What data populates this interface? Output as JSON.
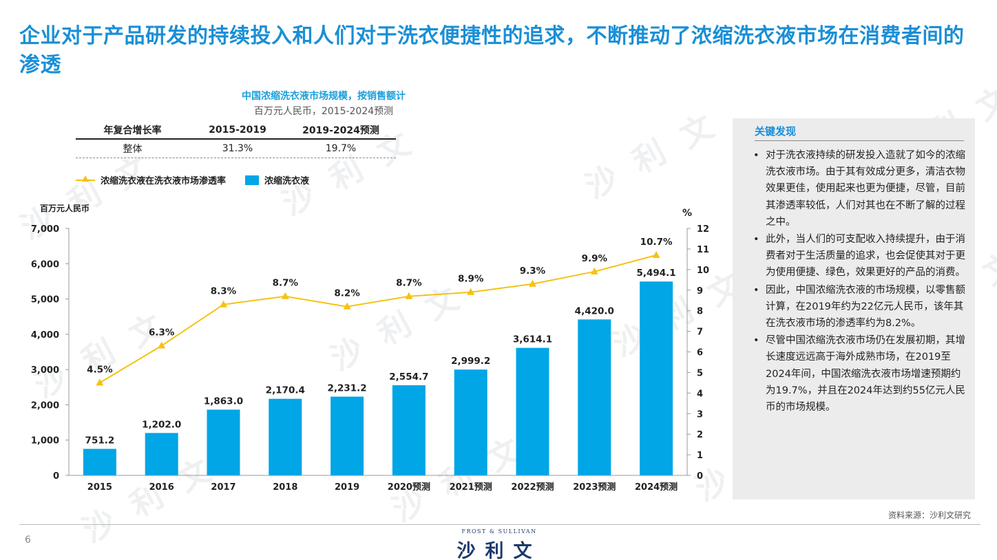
{
  "slide": {
    "title": "企业对于产品研发的持续投入和人们对于洗衣便捷性的追求，不断推动了浓缩洗衣液市场在消费者间的渗透",
    "page_number": "6",
    "source": "资料来源：沙利文研究",
    "logo_main": "沙利文",
    "logo_sub": "FROST & SULLIVAN",
    "watermark": "沙 利 文"
  },
  "cagr_table": {
    "headers": [
      "年复合增长率",
      "2015-2019",
      "2019-2024预测"
    ],
    "rows": [
      [
        "整体",
        "31.3%",
        "19.7%"
      ]
    ]
  },
  "legend": {
    "line_label": "浓缩洗衣液在洗衣液市场渗透率",
    "bar_label": "浓缩洗衣液"
  },
  "findings": {
    "title": "关键发现",
    "items": [
      "对于洗衣液持续的研发投入造就了如今的浓缩洗衣液市场。由于其有效成分更多，清洁衣物效果更佳，使用起来也更为便捷，尽管，目前其渗透率较低，人们对其也在不断了解的过程之中。",
      "此外，当人们的可支配收入持续提升，由于消费者对于生活质量的追求，也会促使其对于更为使用便捷、绿色，效果更好的产品的消费。",
      "因此，中国浓缩洗衣液的市场规模，以零售额计算，在2019年约为22亿元人民币，该年其在洗衣液市场的渗透率约为8.2%。",
      "尽管中国浓缩洗衣液市场仍在发展初期，其增长速度远远高于海外成熟市场，在2019至2024年间，中国浓缩洗衣液市场增速预期约为19.7%，并且在2024年达到约55亿元人民币的市场规模。"
    ]
  },
  "chart_data": {
    "type": "bar",
    "title": "中国浓缩洗衣液市场规模，按销售额计",
    "subtitle": "百万元人民币，2015-2024预测",
    "ylabel": "百万元人民币",
    "y2label": "%",
    "categories": [
      "2015",
      "2016",
      "2017",
      "2018",
      "2019",
      "2020预测",
      "2021预测",
      "2022预测",
      "2023预测",
      "2024预测"
    ],
    "series": [
      {
        "name": "浓缩洗衣液",
        "type": "bar",
        "axis": "left",
        "color": "#00a6e6",
        "values": [
          751.2,
          1202.0,
          1863.0,
          2170.4,
          2231.2,
          2554.7,
          2999.2,
          3614.1,
          4420.0,
          5494.1
        ],
        "labels": [
          "751.2",
          "1,202.0",
          "1,863.0",
          "2,170.4",
          "2,231.2",
          "2,554.7",
          "2,999.2",
          "3,614.1",
          "4,420.0",
          "5,494.1"
        ]
      },
      {
        "name": "浓缩洗衣液在洗衣液市场渗透率",
        "type": "line",
        "axis": "right",
        "color": "#f5c211",
        "values": [
          4.5,
          6.3,
          8.3,
          8.7,
          8.2,
          8.7,
          8.9,
          9.3,
          9.9,
          10.7
        ],
        "labels": [
          "4.5%",
          "6.3%",
          "8.3%",
          "8.7%",
          "8.2%",
          "8.7%",
          "8.9%",
          "9.3%",
          "9.9%",
          "10.7%"
        ]
      }
    ],
    "ylim": [
      0,
      7000
    ],
    "yticks": [
      "0",
      "1,000",
      "2,000",
      "3,000",
      "4,000",
      "5,000",
      "6,000",
      "7,000"
    ],
    "y2lim": [
      0,
      12
    ],
    "y2ticks": [
      "0",
      "1",
      "2",
      "3",
      "4",
      "5",
      "6",
      "7",
      "8",
      "9",
      "10",
      "11",
      "12"
    ],
    "legend_position": "top-left",
    "grid": false
  }
}
